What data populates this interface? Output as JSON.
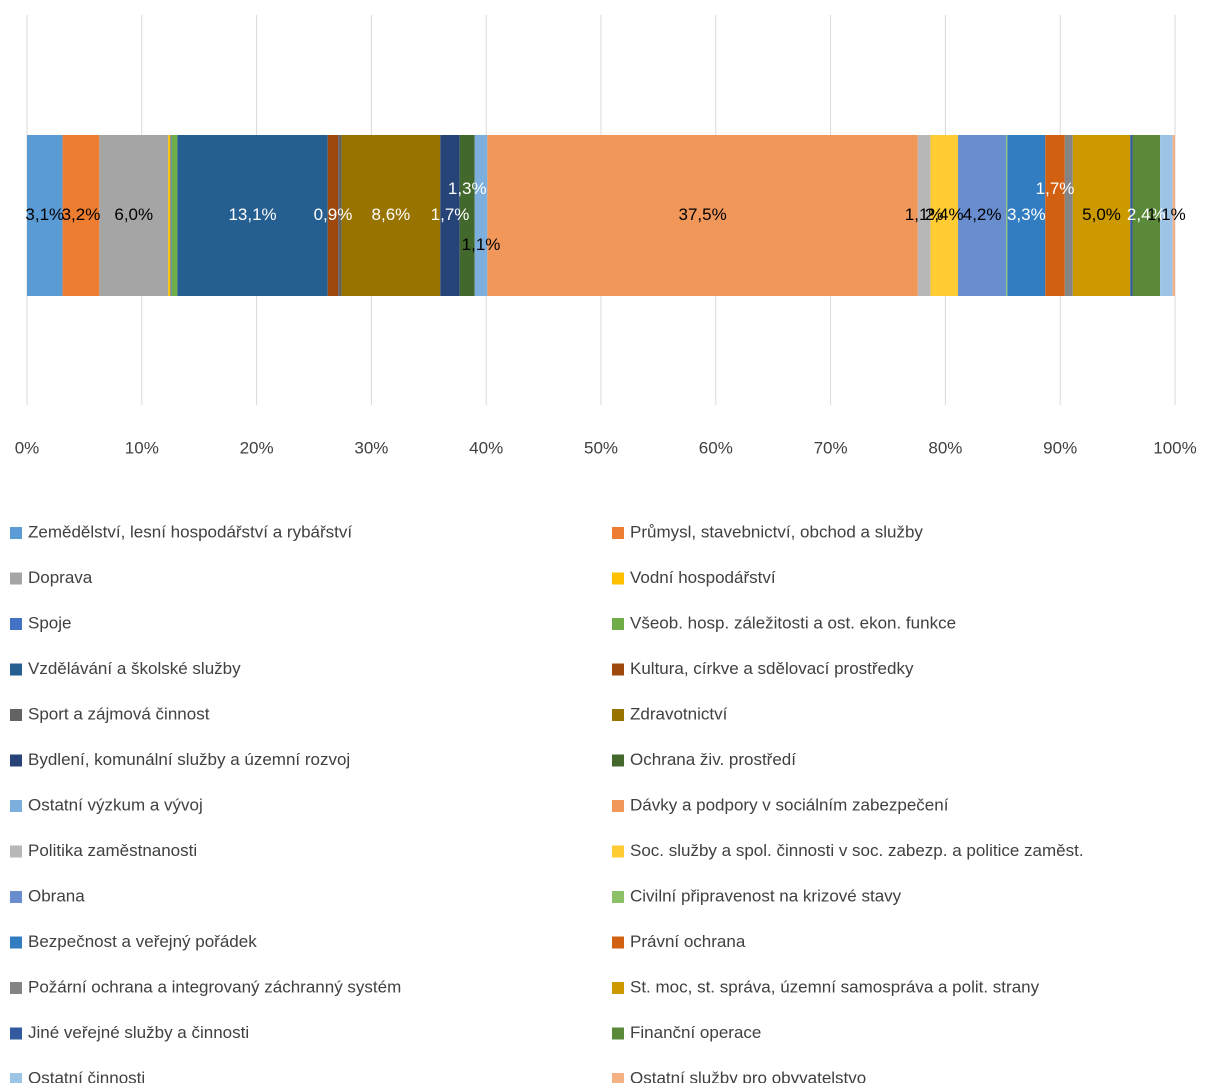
{
  "chart_data": {
    "type": "bar",
    "orientation": "horizontal",
    "stacked": "percent",
    "categories": [
      null
    ],
    "xlim": [
      0,
      100
    ],
    "xticks": [
      {
        "value": 0,
        "label": "0%"
      },
      {
        "value": 10,
        "label": "10%"
      },
      {
        "value": 20,
        "label": "20%"
      },
      {
        "value": 30,
        "label": "30%"
      },
      {
        "value": 40,
        "label": "40%"
      },
      {
        "value": 50,
        "label": "50%"
      },
      {
        "value": 60,
        "label": "60%"
      },
      {
        "value": 70,
        "label": "70%"
      },
      {
        "value": 80,
        "label": "80%"
      },
      {
        "value": 90,
        "label": "90%"
      },
      {
        "value": 100,
        "label": "100%"
      }
    ],
    "grid": true,
    "legend": "bottom",
    "series": [
      {
        "name": "Zemědělství, lesní hospodářství a rybářství",
        "color": "#5B9BD5",
        "values": [
          3.1
        ],
        "value_labels": [
          "3,1%"
        ]
      },
      {
        "name": "Průmysl, stavebnictví, obchod a služby",
        "color": "#ED7D31",
        "values": [
          3.2
        ],
        "value_labels": [
          "3,2%"
        ]
      },
      {
        "name": "Doprava",
        "color": "#A5A5A5",
        "values": [
          6.0
        ],
        "value_labels": [
          "6,0%"
        ]
      },
      {
        "name": "Vodní hospodářství",
        "color": "#FFC000",
        "values": [
          0.2
        ]
      },
      {
        "name": "Spoje",
        "color": "#4472C4",
        "values": [
          0.1
        ]
      },
      {
        "name": "Všeob. hosp. záležitosti a ost. ekon. funkce",
        "color": "#70AD47",
        "values": [
          0.5
        ]
      },
      {
        "name": "Vzdělávání a školské služby",
        "color": "#255E91",
        "values": [
          13.1
        ],
        "value_labels": [
          "13,1%"
        ]
      },
      {
        "name": "Kultura, církve a sdělovací prostředky",
        "color": "#9E480E",
        "values": [
          0.9
        ],
        "value_labels": [
          "0,9%"
        ]
      },
      {
        "name": "Sport a zájmová činnost",
        "color": "#636363",
        "values": [
          0.3
        ]
      },
      {
        "name": "Zdravotnictví",
        "color": "#997300",
        "values": [
          8.6
        ],
        "value_labels": [
          "8,6%"
        ]
      },
      {
        "name": "Bydlení, komunální služby a územní rozvoj",
        "color": "#264478",
        "values": [
          1.7
        ],
        "value_labels": [
          "1,7%"
        ]
      },
      {
        "name": "Ochrana živ. prostředí",
        "color": "#43682B",
        "values": [
          1.3
        ],
        "value_labels": [
          "1,3%"
        ]
      },
      {
        "name": "Ostatní výzkum a vývoj",
        "color": "#7CAFDD",
        "values": [
          1.1
        ],
        "value_labels": [
          "1,1%"
        ]
      },
      {
        "name": "Dávky a podpory v sociálním zabezpečení",
        "color": "#F1975A",
        "values": [
          37.5
        ],
        "value_labels": [
          "37,5%"
        ]
      },
      {
        "name": "Politika zaměstnanosti",
        "color": "#B7B7B7",
        "values": [
          1.1
        ],
        "value_labels": [
          "1,1%"
        ]
      },
      {
        "name": "Soc. služby a spol. činnosti v soc. zabezp. a politice zaměst.",
        "color": "#FFCD33",
        "values": [
          2.4
        ],
        "value_labels": [
          "2,4%"
        ]
      },
      {
        "name": "Obrana",
        "color": "#698ED0",
        "values": [
          4.2
        ],
        "value_labels": [
          "4,2%"
        ]
      },
      {
        "name": "Civilní připravenost na krizové stavy",
        "color": "#8CC168",
        "values": [
          0.1
        ]
      },
      {
        "name": "Bezpečnost a veřejný pořádek",
        "color": "#327DC2",
        "values": [
          3.3
        ],
        "value_labels": [
          "3,3%"
        ]
      },
      {
        "name": "Právní ochrana",
        "color": "#D26012",
        "values": [
          1.7
        ],
        "value_labels": [
          "1,7%"
        ]
      },
      {
        "name": "Požární ochrana a integrovaný záchranný systém",
        "color": "#848484",
        "values": [
          0.7
        ]
      },
      {
        "name": "St. moc, st. správa, územní samospráva a polit. strany",
        "color": "#CC9A00",
        "values": [
          5.0
        ],
        "value_labels": [
          "5,0%"
        ]
      },
      {
        "name": "Jiné veřejné služby a činnosti",
        "color": "#335AA1",
        "values": [
          0.2
        ]
      },
      {
        "name": "Finanční operace",
        "color": "#5A8A39",
        "values": [
          2.4
        ],
        "value_labels": [
          "2,4%"
        ]
      },
      {
        "name": "Ostatní činnosti",
        "color": "#9DC3E6",
        "values": [
          1.1
        ],
        "value_labels": [
          "1,1%"
        ]
      },
      {
        "name": "Ostatní služby pro obyvatelstvo",
        "color": "#F4B183",
        "values": [
          0.2
        ]
      }
    ]
  }
}
